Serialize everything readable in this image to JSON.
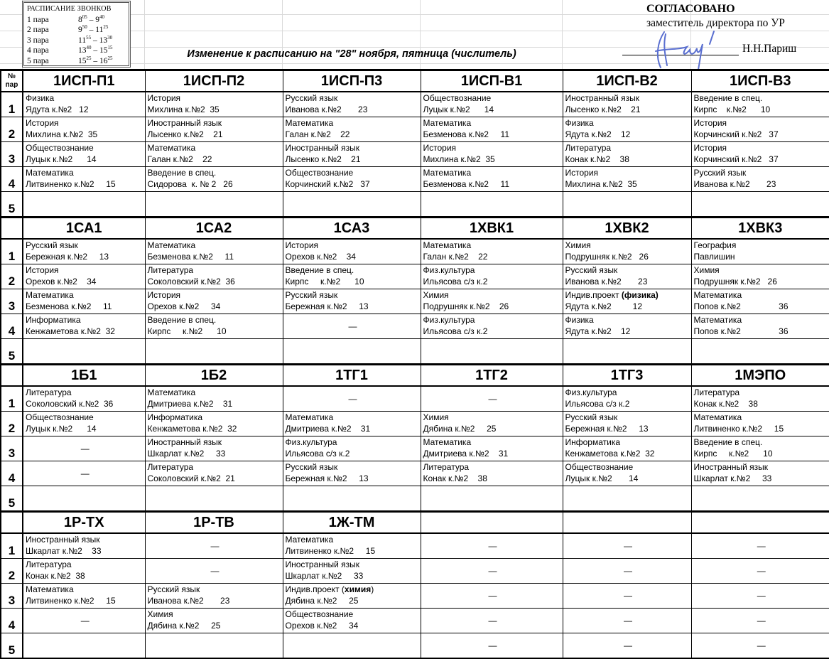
{
  "bells": {
    "title": "РАСПИСАНИЕ ЗВОНКОВ",
    "items": [
      {
        "label": "1 пара",
        "start_h": "8",
        "start_m": "05",
        "end_h": "9",
        "end_m": "40"
      },
      {
        "label": "2 пара",
        "start_h": "9",
        "start_m": "50",
        "end_h": "11",
        "end_m": "25"
      },
      {
        "label": "3 пара",
        "start_h": "11",
        "start_m": "55",
        "end_h": "13",
        "end_m": "30"
      },
      {
        "label": "4 пара",
        "start_h": "13",
        "start_m": "40",
        "end_h": "15",
        "end_m": "15"
      },
      {
        "label": "5 пара",
        "start_h": "15",
        "start_m": "25",
        "end_h": "16",
        "end_m": "25"
      }
    ]
  },
  "title": "Изменение к расписанию на \"28\" ноября, пятница (числитель)",
  "approval": {
    "heading": "СОГЛАСОВАНО",
    "position": "заместитель директора по УР",
    "name": "Н.Н.Париш",
    "signature_color": "#5a6fd0"
  },
  "num_header": "№\nпар",
  "blocks": [
    {
      "groups": [
        "1ИСП-П1",
        "1ИСП-П2",
        "1ИСП-П3",
        "1ИСП-В1",
        "1ИСП-В2",
        "1ИСП-В3"
      ],
      "rows": [
        {
          "n": "1",
          "cells": [
            {
              "s": "Физика",
              "t": "Ядута к.№2   12"
            },
            {
              "s": "История",
              "t": "Михлина к.№2  35"
            },
            {
              "s": "Русский язык",
              "t": "Иванова к.№2       23"
            },
            {
              "s": "Обществознание",
              "t": "Луцык к.№2      14"
            },
            {
              "s": "Иностранный язык",
              "t": "Лысенко к.№2    21"
            },
            {
              "s": "Введение в спец.",
              "t": "Кирпс    к.№2      10"
            }
          ]
        },
        {
          "n": "2",
          "cells": [
            {
              "s": "История",
              "t": "Михлина к.№2  35"
            },
            {
              "s": "Иностранный язык",
              "t": "Лысенко к.№2    21"
            },
            {
              "s": "Математика",
              "t": "Галан к.№2    22"
            },
            {
              "s": "Математика",
              "t": "Безменова к.№2     11"
            },
            {
              "s": "Физика",
              "t": "Ядута к.№2    12"
            },
            {
              "s": "История",
              "t": "Корчинский к.№2   37"
            }
          ]
        },
        {
          "n": "3",
          "cells": [
            {
              "s": "Обществознание",
              "t": "Луцык к.№2      14"
            },
            {
              "s": "Математика",
              "t": "Галан к.№2    22"
            },
            {
              "s": "Иностранный язык",
              "t": "Лысенко к.№2    21"
            },
            {
              "s": "История",
              "t": "Михлина к.№2  35"
            },
            {
              "s": "Литература",
              "t": "Конак к.№2    38"
            },
            {
              "s": "История",
              "t": "Корчинский к.№2   37"
            }
          ]
        },
        {
          "n": "4",
          "cells": [
            {
              "s": "Математика",
              "t": "Литвиненко к.№2     15"
            },
            {
              "s": "Введение в спец.",
              "t": "Сидорова  к. № 2   26"
            },
            {
              "s": "Обществознание",
              "t": "Корчинский к.№2   37"
            },
            {
              "s": "Математика",
              "t": "Безменова к.№2     11"
            },
            {
              "s": "История",
              "t": "Михлина к.№2  35"
            },
            {
              "s": "Русский язык",
              "t": "Иванова к.№2       23"
            }
          ]
        },
        {
          "n": "5",
          "cells": [
            {},
            {},
            {},
            {},
            {},
            {}
          ]
        }
      ]
    },
    {
      "groups": [
        "1СА1",
        "1СА2",
        "1СА3",
        "1ХВК1",
        "1ХВК2",
        "1ХВК3"
      ],
      "rows": [
        {
          "n": "1",
          "cells": [
            {
              "s": "Русский язык",
              "t": "Бережная к.№2     13"
            },
            {
              "s": "Математика",
              "t": "Безменова к.№2     11"
            },
            {
              "s": "История",
              "t": "Орехов к.№2    34"
            },
            {
              "s": "Математика",
              "t": "Галан к.№2    22"
            },
            {
              "s": "Химия",
              "t": "Подрушняк к.№2   26"
            },
            {
              "s": "География",
              "t": "Павлишин"
            }
          ]
        },
        {
          "n": "2",
          "cells": [
            {
              "s": "История",
              "t": "Орехов к.№2    34"
            },
            {
              "s": "Литература",
              "t": "Соколовский к.№2  36"
            },
            {
              "s": "Введение в спец.",
              "t": "Кирпс     к.№2      10"
            },
            {
              "s": "Физ.культура",
              "t": "Ильясова с/з к.2"
            },
            {
              "s": "Русский язык",
              "t": "Иванова к.№2       23"
            },
            {
              "s": "Химия",
              "t": "Подрушняк к.№2   26"
            }
          ]
        },
        {
          "n": "3",
          "cells": [
            {
              "s": "Математика",
              "t": "Безменова к.№2     11"
            },
            {
              "s": "История",
              "t": "Орехов к.№2     34"
            },
            {
              "s": "Русский язык",
              "t": "Бережная к.№2     13"
            },
            {
              "s": "Химия",
              "t": "Подрушняк к.№2    26"
            },
            {
              "s": "Индив.проект ",
              "b": "(физика)",
              "t": "Ядута к.№2         12"
            },
            {
              "s": "Математика",
              "t": "Попов к.№2                36"
            }
          ]
        },
        {
          "n": "4",
          "cells": [
            {
              "s": "Информатика",
              "t": "Кенжаметова к.№2  32"
            },
            {
              "s": "Введение в спец.",
              "t": "Кирпс     к.№2      10"
            },
            {
              "d": "—"
            },
            {
              "s": "Физ.культура",
              "t": "Ильясова с/з к.2"
            },
            {
              "s": "Физика",
              "t": "Ядута к.№2    12"
            },
            {
              "s": "Математика",
              "t": "Попов к.№2                36"
            }
          ]
        },
        {
          "n": "5",
          "cells": [
            {},
            {},
            {},
            {},
            {},
            {}
          ]
        }
      ]
    },
    {
      "groups": [
        "1Б1",
        "1Б2",
        "1ТГ1",
        "1ТГ2",
        "1ТГ3",
        "1МЭПО"
      ],
      "rows": [
        {
          "n": "1",
          "cells": [
            {
              "s": "Литература",
              "t": "Соколовский к.№2  36"
            },
            {
              "s": "Математика",
              "t": "Дмитриева к.№2    31"
            },
            {
              "d": "—"
            },
            {
              "d": "—"
            },
            {
              "s": "Физ.культура",
              "t": "Ильясова с/з к.2"
            },
            {
              "s": "Литература",
              "t": "Конак к.№2    38"
            }
          ]
        },
        {
          "n": "2",
          "cells": [
            {
              "s": "Обществознание",
              "t": "Луцык к.№2      14"
            },
            {
              "s": "Информатика",
              "t": "Кенжаметова к.№2  32"
            },
            {
              "s": "Математика",
              "t": "Дмитриева к.№2    31"
            },
            {
              "s": "Химия",
              "t": "Дябина к.№2     25"
            },
            {
              "s": "Русский язык",
              "t": "Бережная к.№2     13"
            },
            {
              "s": "Математика",
              "t": "Литвиненко к.№2     15"
            }
          ]
        },
        {
          "n": "3",
          "cells": [
            {
              "d": "—"
            },
            {
              "s": "Иностранный язык",
              "t": "Шкарлат к.№2     33"
            },
            {
              "s": "Физ.культура",
              "t": "Ильясова с/з к.2"
            },
            {
              "s": "Математика",
              "t": "Дмитриева к.№2    31"
            },
            {
              "s": "Информатика",
              "t": "Кенжаметова к.№2  32"
            },
            {
              "s": "Введение в спец.",
              "t": "Кирпс     к.№2      10"
            }
          ]
        },
        {
          "n": "4",
          "cells": [
            {
              "d": "—"
            },
            {
              "s": "Литература",
              "t": "Соколовский к.№2  21"
            },
            {
              "s": "Русский язык",
              "t": "Бережная к.№2     13"
            },
            {
              "s": "Литература",
              "t": "Конак к.№2    38"
            },
            {
              "s": "Обществознание",
              "t": "Луцык к.№2       14"
            },
            {
              "s": "Иностранный язык",
              "t": "Шкарлат к.№2     33"
            }
          ]
        },
        {
          "n": "5",
          "cells": [
            {},
            {},
            {},
            {},
            {},
            {}
          ]
        }
      ]
    },
    {
      "groups": [
        "1Р-ТХ",
        "1Р-ТВ",
        "1Ж-ТМ",
        "",
        "",
        ""
      ],
      "rows": [
        {
          "n": "1",
          "cells": [
            {
              "s": "Иностранный язык",
              "t": "Шкарлат к.№2    33"
            },
            {
              "d": "—"
            },
            {
              "s": "Математика",
              "t": "Литвиненко к.№2     15"
            },
            {
              "d": "—"
            },
            {
              "d": "—"
            },
            {
              "d": "—"
            }
          ]
        },
        {
          "n": "2",
          "cells": [
            {
              "s": "Литература",
              "t": "Конак к.№2  38"
            },
            {
              "d": "—"
            },
            {
              "s": "Иностранный язык",
              "t": "Шкарлат к.№2     33"
            },
            {
              "d": "—"
            },
            {
              "d": "—"
            },
            {
              "d": "—"
            }
          ]
        },
        {
          "n": "3",
          "cells": [
            {
              "s": "Математика",
              "t": "Литвиненко к.№2     15"
            },
            {
              "s": "Русский язык",
              "t": "Иванова к.№2       23"
            },
            {
              "s": "Индив.проект (",
              "b": "химия",
              "s2": ")",
              "t": "Дябина к.№2     25"
            },
            {
              "d": "—"
            },
            {
              "d": "—"
            },
            {
              "d": "—"
            }
          ]
        },
        {
          "n": "4",
          "cells": [
            {
              "d": "—"
            },
            {
              "s": "Химия",
              "t": "Дябина к.№2     25"
            },
            {
              "s": "Обществознание",
              "t": "Орехов к.№2     34"
            },
            {
              "d": "—"
            },
            {
              "d": "—"
            },
            {
              "d": "—"
            }
          ]
        },
        {
          "n": "5",
          "cells": [
            {},
            {},
            {},
            {
              "d": "—"
            },
            {
              "d": "—"
            },
            {
              "d": "—"
            }
          ]
        }
      ]
    }
  ]
}
